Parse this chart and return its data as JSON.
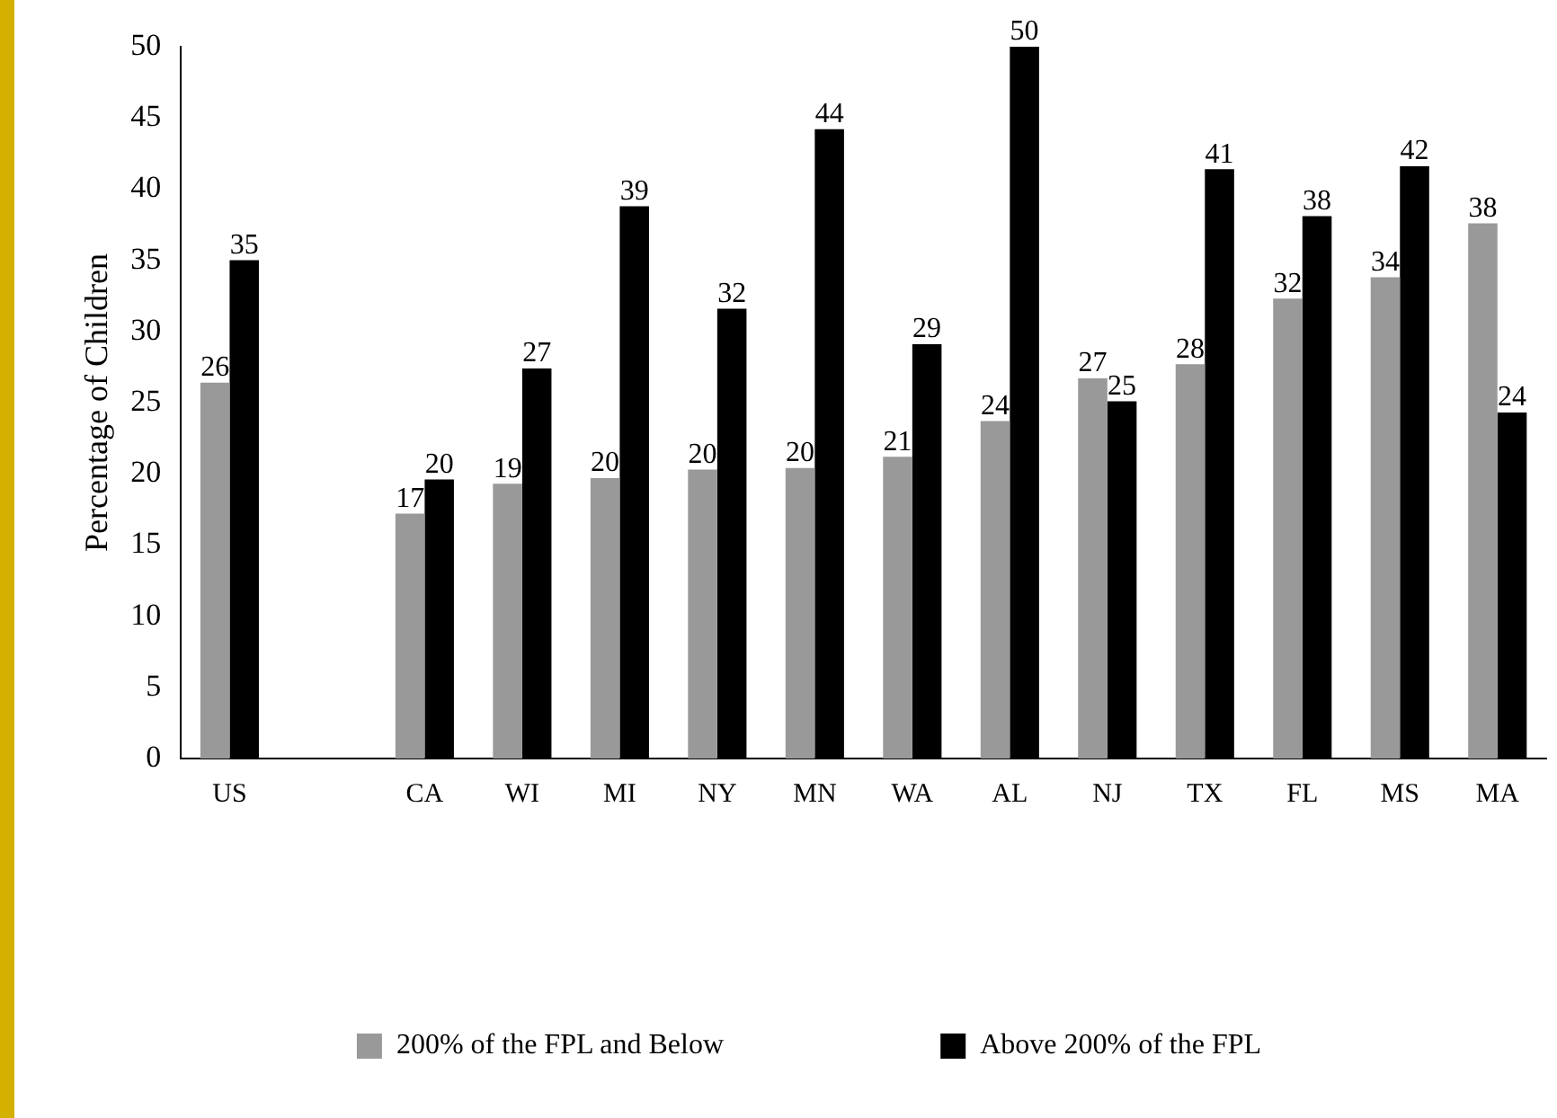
{
  "chart_data": {
    "type": "bar",
    "ylabel": "Percentage of Children",
    "categories": [
      "US",
      null,
      "CA",
      "WI",
      "MI",
      "NY",
      "MN",
      "WA",
      "AL",
      "NJ",
      "TX",
      "FL",
      "MS",
      "MA"
    ],
    "series": [
      {
        "name": "200% of the FPL and Below",
        "color": "#999999",
        "values": [
          26.4,
          null,
          17.2,
          19.3,
          19.7,
          20.3,
          20.4,
          21.2,
          23.7,
          26.7,
          27.7,
          32.3,
          33.8,
          37.6
        ],
        "value_labels": [
          "26",
          null,
          "17",
          "19",
          "20",
          "20",
          "20",
          "21",
          "24",
          "27",
          "28",
          "32",
          "34",
          "38"
        ]
      },
      {
        "name": "Above 200% of the FPL",
        "color": "#000000",
        "values": [
          35,
          null,
          19.6,
          27.4,
          38.8,
          31.6,
          44.2,
          29.1,
          50,
          25.1,
          41.4,
          38.1,
          41.6,
          24.3
        ],
        "value_labels": [
          "35",
          null,
          "20",
          "27",
          "39",
          "32",
          "44",
          "29",
          "50",
          "25",
          "41",
          "38",
          "42",
          "24"
        ]
      }
    ],
    "ylim": [
      0,
      50
    ],
    "yticks": [
      0,
      5,
      10,
      15,
      20,
      25,
      30,
      35,
      40,
      45,
      50
    ],
    "grid": false,
    "legend": "bottom"
  }
}
